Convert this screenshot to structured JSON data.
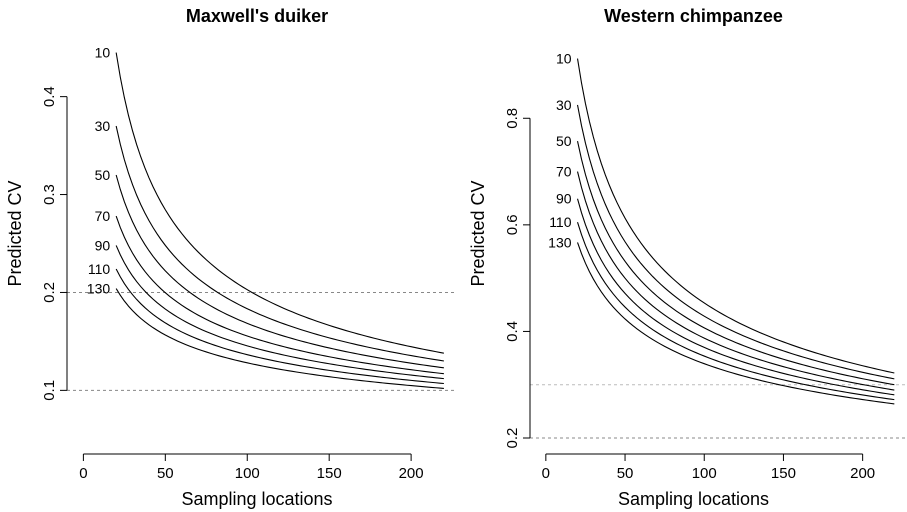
{
  "chart_data": [
    {
      "type": "line",
      "title": "Maxwell's duiker",
      "xlabel": "Sampling locations",
      "ylabel": "Predicted CV",
      "xlim": [
        -10,
        228
      ],
      "ylim": [
        0.035,
        0.465
      ],
      "xticks": [
        0,
        50,
        100,
        150,
        200
      ],
      "yticks": [
        0.1,
        0.2,
        0.3,
        0.4
      ],
      "ytick_labels": [
        "0.1",
        "0.2",
        "0.3",
        "0.4"
      ],
      "xtick_labels": [
        "0",
        "50",
        "100",
        "150",
        "200"
      ],
      "x": [
        20,
        220
      ],
      "reference_lines": [
        {
          "y": 0.2,
          "color": "#888888"
        },
        {
          "y": 0.1,
          "color": "#888888"
        }
      ],
      "series": [
        {
          "name": "10",
          "values": [
            0.445,
            0.138
          ]
        },
        {
          "name": "30",
          "values": [
            0.37,
            0.13
          ]
        },
        {
          "name": "50",
          "values": [
            0.32,
            0.123
          ]
        },
        {
          "name": "70",
          "values": [
            0.278,
            0.117
          ]
        },
        {
          "name": "90",
          "values": [
            0.248,
            0.112
          ]
        },
        {
          "name": "110",
          "values": [
            0.224,
            0.107
          ]
        },
        {
          "name": "130",
          "values": [
            0.204,
            0.102
          ]
        }
      ]
    },
    {
      "type": "line",
      "title": "Western chimpanzee",
      "xlabel": "Sampling locations",
      "ylabel": "Predicted CV",
      "xlim": [
        -10,
        228
      ],
      "ylim": [
        0.17,
        0.96
      ],
      "xticks": [
        0,
        50,
        100,
        150,
        200
      ],
      "yticks": [
        0.2,
        0.4,
        0.6,
        0.8
      ],
      "ytick_labels": [
        "0.2",
        "0.4",
        "0.6",
        "0.8"
      ],
      "xtick_labels": [
        "0",
        "50",
        "100",
        "150",
        "200"
      ],
      "x": [
        20,
        220
      ],
      "reference_lines": [
        {
          "y": 0.3,
          "color": "#bbbbbb"
        },
        {
          "y": 0.2,
          "color": "#888888"
        }
      ],
      "series": [
        {
          "name": "10",
          "values": [
            0.912,
            0.322
          ]
        },
        {
          "name": "30",
          "values": [
            0.825,
            0.311
          ]
        },
        {
          "name": "50",
          "values": [
            0.757,
            0.3
          ]
        },
        {
          "name": "70",
          "values": [
            0.7,
            0.29
          ]
        },
        {
          "name": "90",
          "values": [
            0.649,
            0.281
          ]
        },
        {
          "name": "110",
          "values": [
            0.605,
            0.272
          ]
        },
        {
          "name": "130",
          "values": [
            0.567,
            0.264
          ]
        }
      ]
    }
  ]
}
